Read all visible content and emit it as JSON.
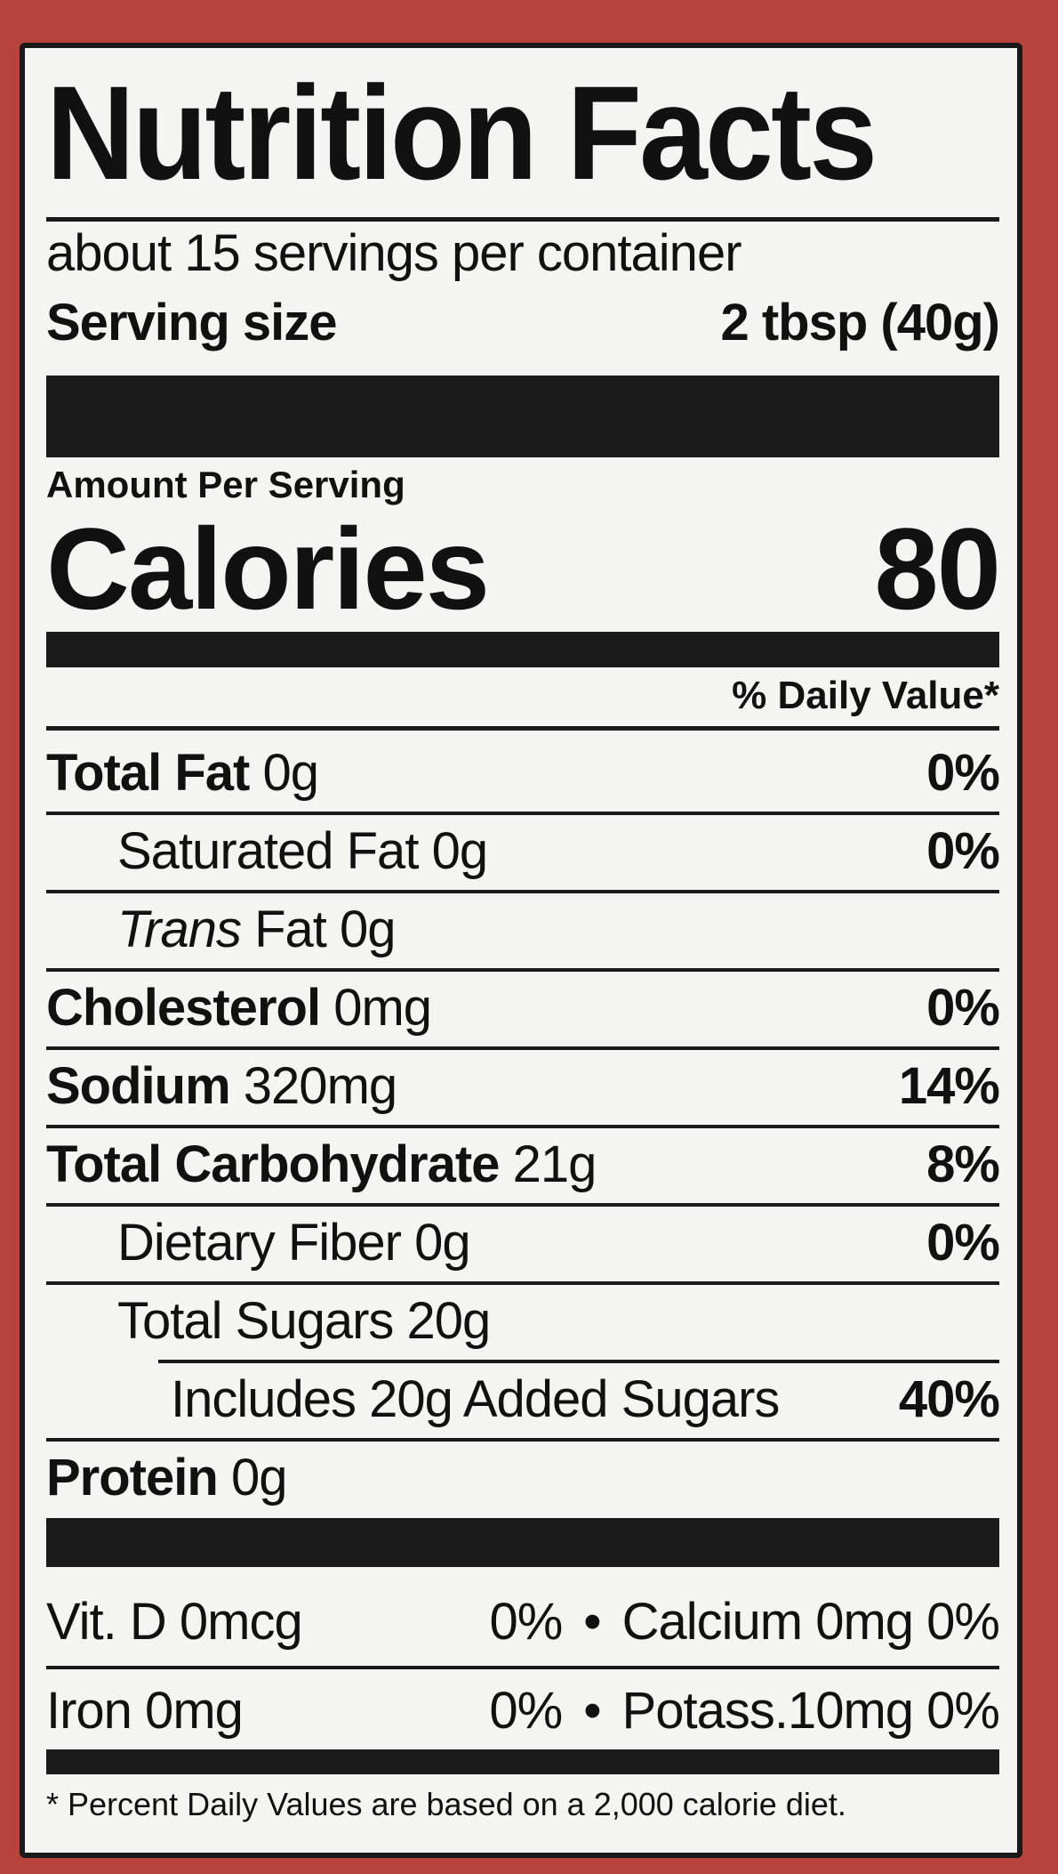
{
  "title": "Nutrition Facts",
  "servings_per_container": "about 15 servings per container",
  "serving_size": {
    "label": "Serving size",
    "value": "2 tbsp (40g)"
  },
  "amount_per_serving": "Amount Per Serving",
  "calories": {
    "label": "Calories",
    "value": "80"
  },
  "daily_value_header": "% Daily Value*",
  "nutrients": [
    {
      "name": "Total Fat",
      "amount": "0g",
      "dv": "0%"
    },
    {
      "name": "Saturated Fat",
      "amount": "0g",
      "dv": "0%"
    },
    {
      "name": "Trans",
      "name2": "Fat",
      "amount": "0g",
      "dv": ""
    },
    {
      "name": "Cholesterol",
      "amount": "0mg",
      "dv": "0%"
    },
    {
      "name": "Sodium",
      "amount": "320mg",
      "dv": "14%"
    },
    {
      "name": "Total Carbohydrate",
      "amount": "21g",
      "dv": "8%"
    },
    {
      "name": "Dietary Fiber",
      "amount": "0g",
      "dv": "0%"
    },
    {
      "name": "Total Sugars",
      "amount": "20g",
      "dv": ""
    },
    {
      "name": "Includes 20g Added Sugars",
      "amount": "",
      "dv": "40%"
    },
    {
      "name": "Protein",
      "amount": "0g",
      "dv": ""
    }
  ],
  "vitamins": [
    [
      {
        "name": "Vit. D 0mcg",
        "dv": "0%"
      },
      {
        "name": "Calcium 0mg",
        "dv": "0%"
      }
    ],
    [
      {
        "name": "Iron 0mg",
        "dv": "0%"
      },
      {
        "name": "Potass.10mg",
        "dv": "0%"
      }
    ]
  ],
  "separator": "•",
  "footnote": "* Percent Daily Values are based on a 2,000 calorie diet.",
  "colors": {
    "background": "#b8433a",
    "label": "#f4f4f2",
    "ink": "#111111"
  }
}
